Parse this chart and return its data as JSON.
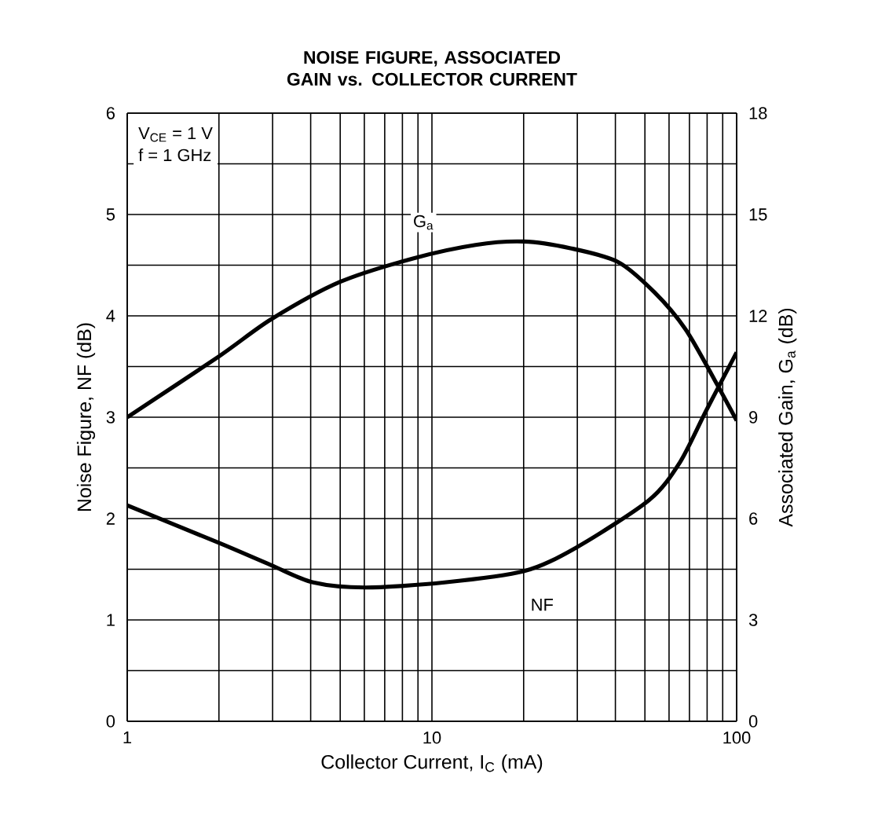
{
  "chart_data": {
    "type": "line",
    "title": "NOISE FIGURE, ASSOCIATED GAIN vs. COLLECTOR CURRENT",
    "xlabel": "Collector Current, I$_{C}$ (mA)",
    "ylabel": "Noise Figure, NF (dB)",
    "y2label": "Associated Gain, G$_{a}$ (dB)",
    "annotations": [
      "V$_{CE}$ = 1 V",
      "f = 1 GHz"
    ],
    "log": "x",
    "grid": true,
    "xlim": [
      1,
      100
    ],
    "xticks": [
      1,
      10,
      100
    ],
    "ylim": [
      0,
      6
    ],
    "yticks": [
      0,
      1,
      2,
      3,
      4,
      5,
      6
    ],
    "y2lim": [
      0,
      18
    ],
    "y2ticks": [
      0,
      3,
      6,
      9,
      12,
      15,
      18
    ],
    "series": [
      {
        "name": "G$_{a}$",
        "color": "#000000",
        "axis": "y2",
        "x": [
          1,
          2,
          2.97,
          4.98,
          8.67,
          13.9,
          20,
          28.5,
          40.7,
          53.7,
          68,
          84.7,
          100
        ],
        "values": [
          9.0,
          10.8,
          11.9,
          13.0,
          13.7,
          14.1,
          14.2,
          14.0,
          13.6,
          12.7,
          11.6,
          10.1,
          8.9
        ]
      },
      {
        "name": "NF",
        "color": "#000000",
        "x": [
          1,
          2,
          2.97,
          4.08,
          6.06,
          11,
          20,
          29.6,
          51.5,
          65,
          79.6,
          100
        ],
        "values": [
          2.13,
          1.76,
          1.54,
          1.37,
          1.32,
          1.37,
          1.48,
          1.71,
          2.18,
          2.55,
          3.07,
          3.64
        ]
      }
    ]
  }
}
